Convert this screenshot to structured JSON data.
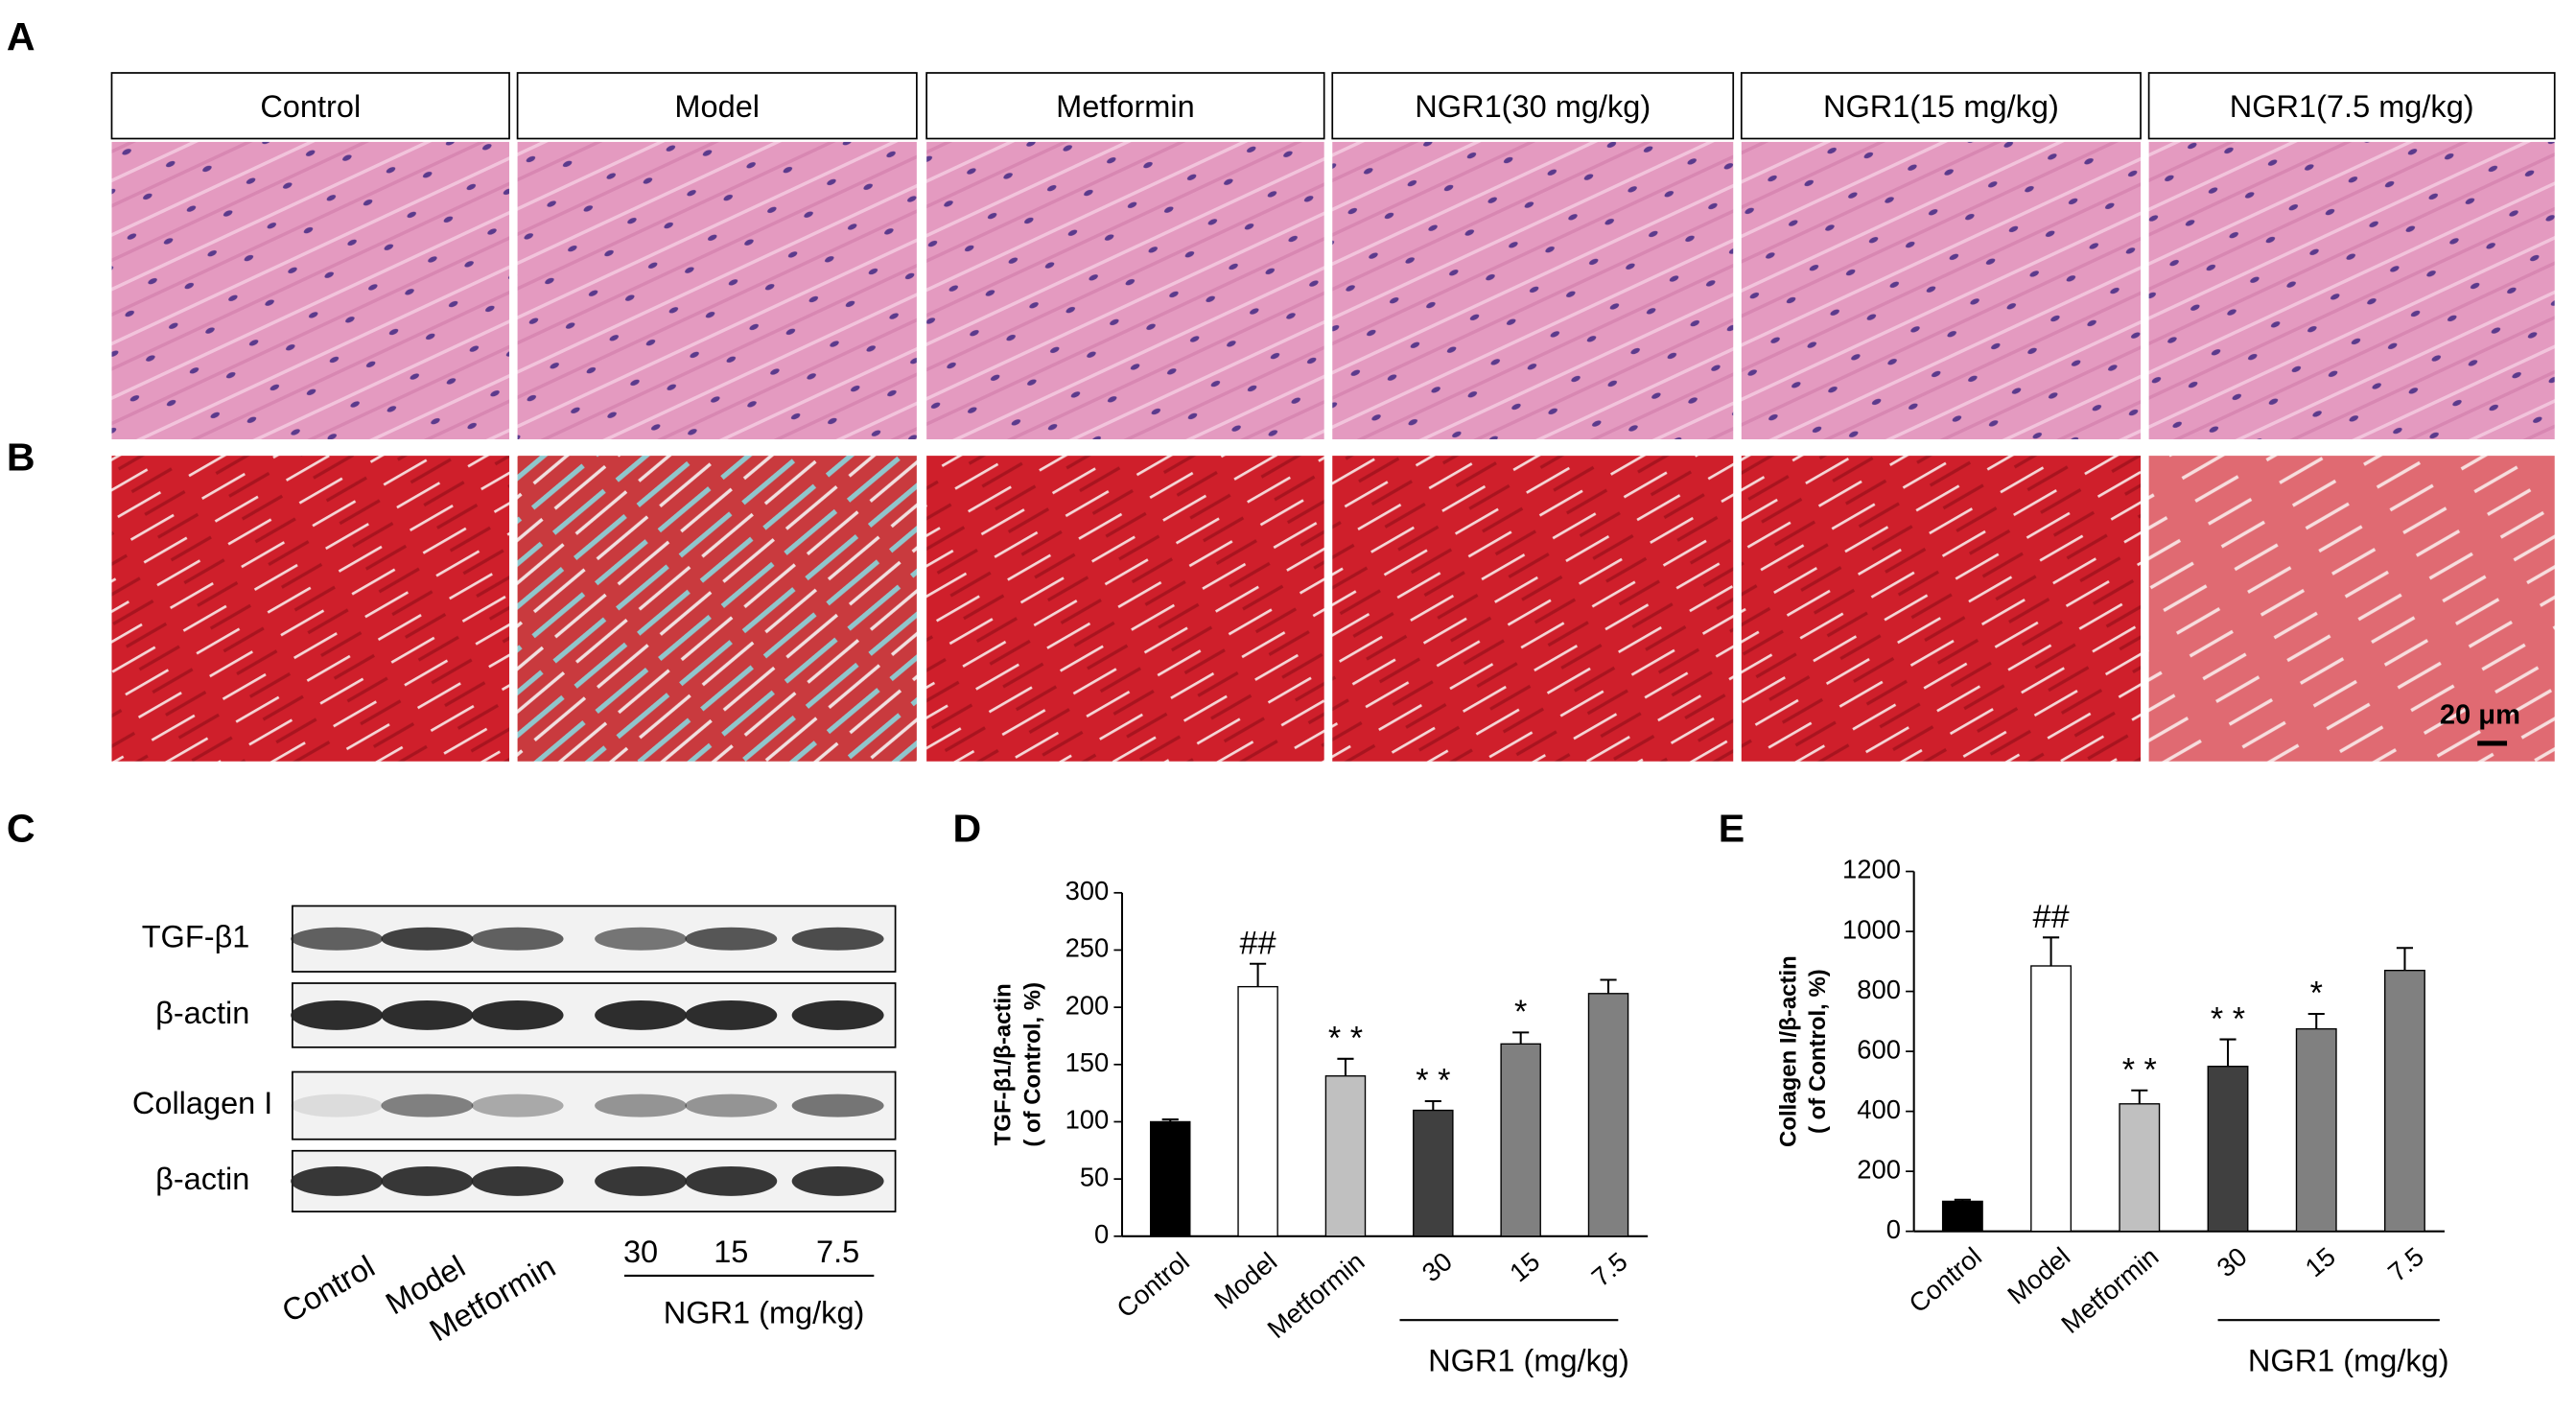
{
  "panel_labels": [
    "A",
    "B",
    "C",
    "D",
    "E"
  ],
  "micrograph_groups": [
    "Control",
    "Model",
    "Metformin",
    "NGR1(30 mg/kg)",
    "NGR1(15 mg/kg)",
    "NGR1(7.5 mg/kg)"
  ],
  "scale_bar": "20 μm",
  "blot": {
    "rows": [
      "TGF-β1",
      "β-actin",
      "Collagen I",
      "β-actin"
    ],
    "lanes": [
      "Control",
      "Model",
      "Metformin",
      "30",
      "15",
      "7.5"
    ],
    "group_label": "NGR1 (mg/kg)"
  },
  "chart_data": [
    {
      "type": "bar",
      "ylabel": [
        "TGF-β1/β-actin",
        "( of Control, %)"
      ],
      "categories": [
        "Control",
        "Model",
        "Metformin",
        "30",
        "15",
        "7.5"
      ],
      "values": [
        100,
        218,
        140,
        110,
        168,
        212
      ],
      "errors": [
        2,
        20,
        15,
        8,
        10,
        12
      ],
      "colors": [
        "#000000",
        "#ffffff",
        "#c0c0c0",
        "#404040",
        "#808080",
        "#808080"
      ],
      "annotations": [
        null,
        "##",
        "* *",
        "* *",
        "*",
        null
      ],
      "group_label": "NGR1 (mg/kg)",
      "ylim": [
        0,
        300
      ],
      "yticks": [
        0,
        50,
        100,
        150,
        200,
        250,
        300
      ]
    },
    {
      "type": "bar",
      "ylabel": [
        "Collagen I/β-actin",
        "( of Control, %)"
      ],
      "categories": [
        "Control",
        "Model",
        "Metformin",
        "30",
        "15",
        "7.5"
      ],
      "values": [
        100,
        885,
        425,
        550,
        675,
        870
      ],
      "errors": [
        5,
        95,
        45,
        90,
        50,
        75
      ],
      "colors": [
        "#000000",
        "#ffffff",
        "#c0c0c0",
        "#404040",
        "#808080",
        "#808080"
      ],
      "annotations": [
        null,
        "##",
        "* *",
        "* *",
        "*",
        null
      ],
      "group_label": "NGR1 (mg/kg)",
      "ylim": [
        0,
        1200
      ],
      "yticks": [
        0,
        200,
        400,
        600,
        800,
        1000,
        1200
      ]
    }
  ]
}
